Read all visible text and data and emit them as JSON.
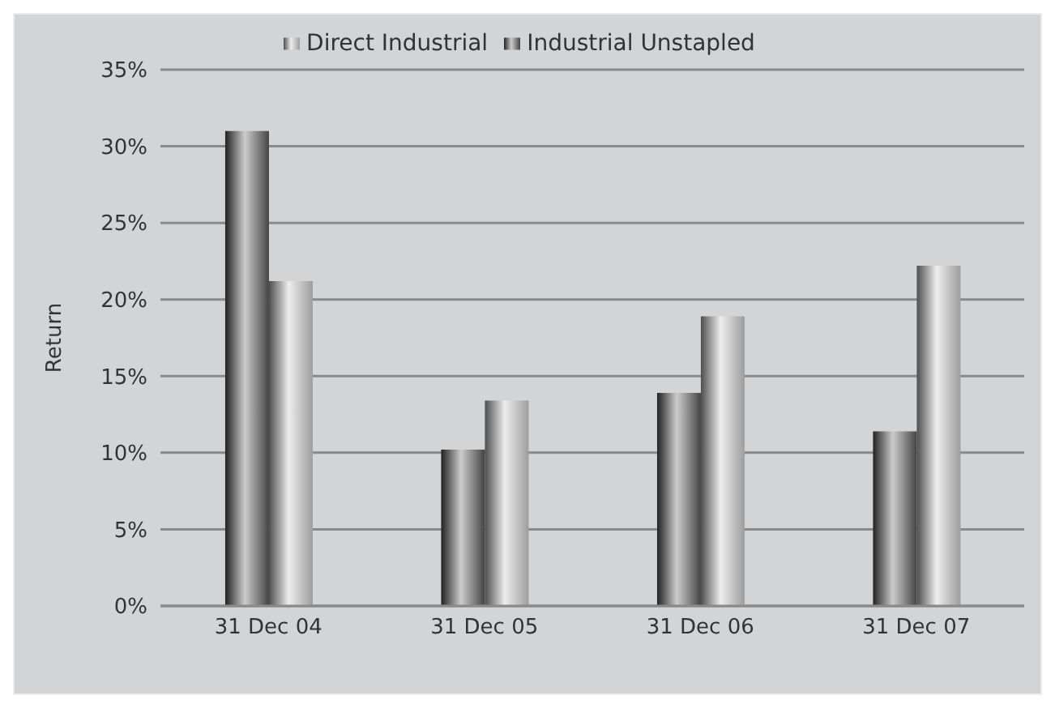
{
  "chart_data": {
    "type": "bar",
    "ylabel": "Return",
    "categories": [
      "31 Dec 04",
      "31 Dec 05",
      "31 Dec 06",
      "31 Dec 07"
    ],
    "series": [
      {
        "name": "Industrial Unstapled",
        "color": "#555555",
        "values": [
          31,
          10.2,
          13.9,
          11.4
        ]
      },
      {
        "name": "Direct Industrial",
        "color": "#c4c4c4",
        "values": [
          21.2,
          13.4,
          18.9,
          22.2
        ]
      }
    ],
    "ylim": [
      0,
      35
    ],
    "yticks": [
      {
        "value": 0,
        "label": "0%"
      },
      {
        "value": 5,
        "label": "5%"
      },
      {
        "value": 10,
        "label": "10%"
      },
      {
        "value": 15,
        "label": "15%"
      },
      {
        "value": 20,
        "label": "20%"
      },
      {
        "value": 25,
        "label": "25%"
      },
      {
        "value": 30,
        "label": "30%"
      },
      {
        "value": 35,
        "label": "35%"
      }
    ],
    "grid": "y",
    "legend": "top"
  }
}
